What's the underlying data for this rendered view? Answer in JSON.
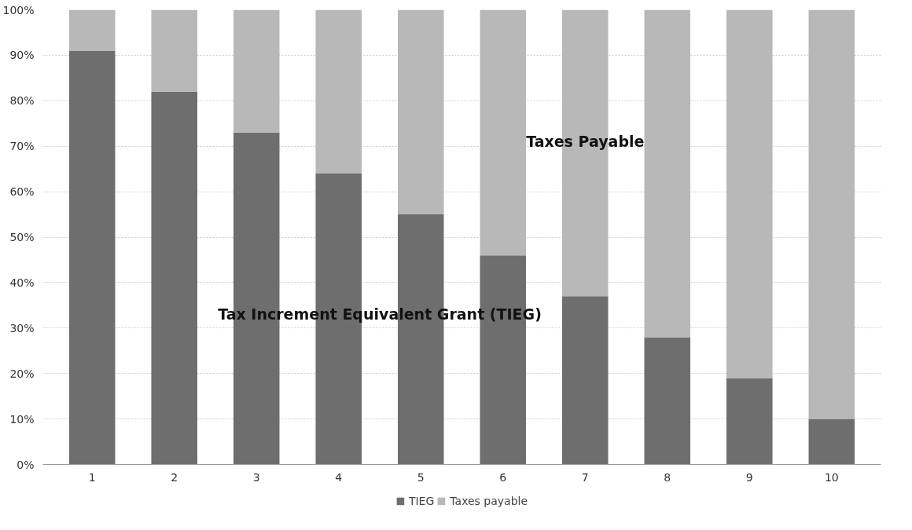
{
  "chart_data": {
    "type": "bar",
    "stacked": true,
    "categories": [
      "1",
      "2",
      "3",
      "4",
      "5",
      "6",
      "7",
      "8",
      "9",
      "10"
    ],
    "series": [
      {
        "name": "TIEG",
        "color": "#6e6e6e",
        "values": [
          91,
          82,
          73,
          64,
          55,
          46,
          37,
          28,
          19,
          10
        ]
      },
      {
        "name": "Taxes payable",
        "color": "#b8b8b8",
        "values": [
          9,
          18,
          27,
          36,
          45,
          54,
          63,
          72,
          81,
          90
        ]
      }
    ],
    "ylim": [
      0,
      100
    ],
    "yticks": [
      {
        "value": 0,
        "label": "0%"
      },
      {
        "value": 10,
        "label": "10%"
      },
      {
        "value": 20,
        "label": "20%"
      },
      {
        "value": 30,
        "label": "30%"
      },
      {
        "value": 40,
        "label": "40%"
      },
      {
        "value": 50,
        "label": "50%"
      },
      {
        "value": 60,
        "label": "60%"
      },
      {
        "value": 70,
        "label": "70%"
      },
      {
        "value": 80,
        "label": "80%"
      },
      {
        "value": 90,
        "label": "90%"
      },
      {
        "value": 100,
        "label": "100%"
      }
    ],
    "grid": "y",
    "legend": "bottom",
    "annotations": [
      "Taxes Payable",
      "Tax Increment Equivalent Grant (TIEG)"
    ]
  }
}
